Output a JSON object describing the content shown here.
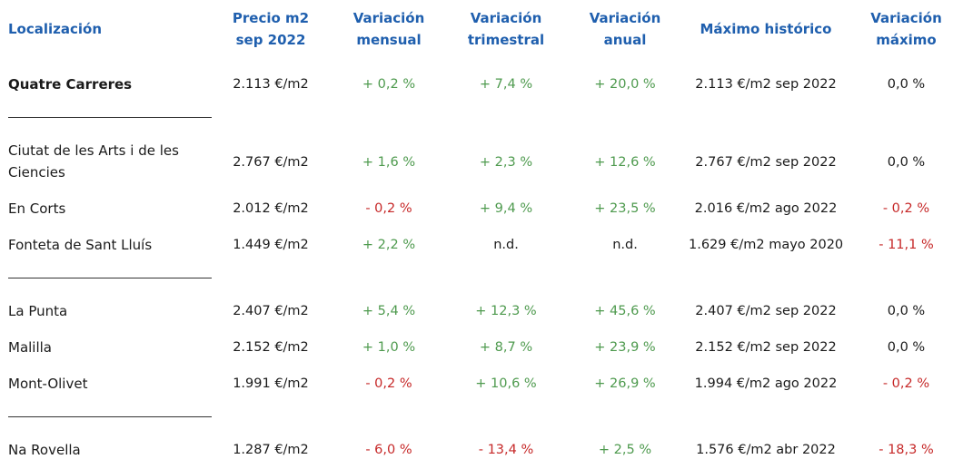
{
  "headers": {
    "location": "Localización",
    "price": "Precio m2\nsep 2022",
    "monthly": "Variación\nmensual",
    "quarterly": "Variación\ntrimestral",
    "annual": "Variación\nanual",
    "max_hist": "Máximo histórico",
    "max_var": "Variación\nmáximo"
  },
  "rows": [
    {
      "loc": "Quatre Carreres",
      "price": "2.113 €/m2",
      "monthly": "+ 0,2 %",
      "quarterly": "+ 7,4 %",
      "annual": "+ 20,0 %",
      "max_hist": "2.113 €/m2 sep 2022",
      "max_var": "0,0 %"
    },
    {
      "loc": "Ciutat de les Arts i de les Ciencies",
      "price": "2.767 €/m2",
      "monthly": "+ 1,6 %",
      "quarterly": "+ 2,3 %",
      "annual": "+ 12,6 %",
      "max_hist": "2.767 €/m2 sep 2022",
      "max_var": "0,0 %"
    },
    {
      "loc": "En Corts",
      "price": "2.012 €/m2",
      "monthly": "- 0,2 %",
      "quarterly": "+ 9,4 %",
      "annual": "+ 23,5 %",
      "max_hist": "2.016 €/m2 ago 2022",
      "max_var": "- 0,2 %"
    },
    {
      "loc": "Fonteta de Sant Lluís",
      "price": "1.449 €/m2",
      "monthly": "+ 2,2 %",
      "quarterly": "n.d.",
      "annual": "n.d.",
      "max_hist": "1.629 €/m2 mayo 2020",
      "max_var": "- 11,1 %"
    },
    {
      "loc": "La Punta",
      "price": "2.407 €/m2",
      "monthly": "+ 5,4 %",
      "quarterly": "+ 12,3 %",
      "annual": "+ 45,6 %",
      "max_hist": "2.407 €/m2 sep 2022",
      "max_var": "0,0 %"
    },
    {
      "loc": "Malilla",
      "price": "2.152 €/m2",
      "monthly": "+ 1,0 %",
      "quarterly": "+ 8,7 %",
      "annual": "+ 23,9 %",
      "max_hist": "2.152 €/m2 sep 2022",
      "max_var": "0,0 %"
    },
    {
      "loc": "Mont-Olivet",
      "price": "1.991 €/m2",
      "monthly": "- 0,2 %",
      "quarterly": "+ 10,6 %",
      "annual": "+ 26,9 %",
      "max_hist": "1.994 €/m2 ago 2022",
      "max_var": "- 0,2 %"
    },
    {
      "loc": "Na Rovella",
      "price": "1.287 €/m2",
      "monthly": "- 6,0 %",
      "quarterly": "- 13,4 %",
      "annual": "+ 2,5 %",
      "max_hist": "1.576 €/m2 abr 2022",
      "max_var": "- 18,3 %"
    }
  ],
  "colors": {
    "header": "#1f5fae",
    "positive": "#4e9a4e",
    "negative": "#c62828",
    "text": "#1a1a1a"
  }
}
